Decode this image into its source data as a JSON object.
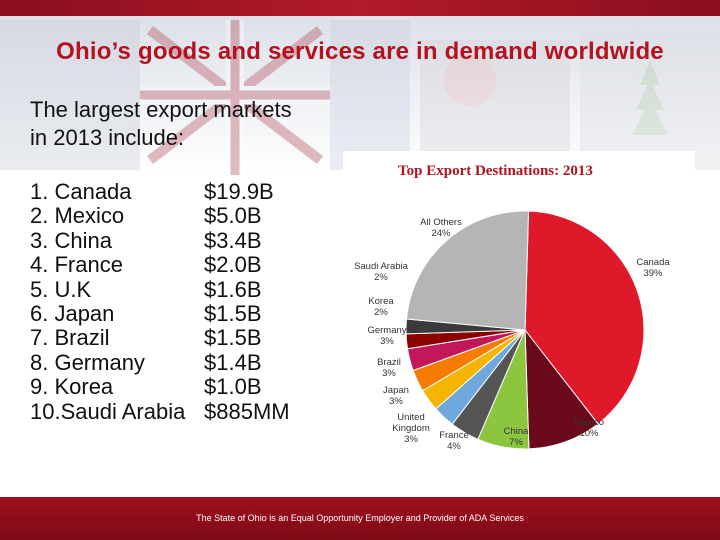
{
  "slide": {
    "title": "Ohio’s goods and services are in demand worldwide",
    "intro_line1": "The largest export markets",
    "intro_line2": "in 2013 include:",
    "items": [
      {
        "label": "1.  Canada",
        "value": "$19.9B"
      },
      {
        "label": "2.  Mexico",
        "value": "$5.0B"
      },
      {
        "label": "3.  China",
        "value": "$3.4B"
      },
      {
        "label": "4.  France",
        "value": "$2.0B"
      },
      {
        "label": "5.  U.K",
        "value": "$1.6B"
      },
      {
        "label": "6.  Japan",
        "value": "$1.5B"
      },
      {
        "label": "7.  Brazil",
        "value": "$1.5B"
      },
      {
        "label": "8.  Germany",
        "value": "$1.4B"
      },
      {
        "label": "9. Korea",
        "value": "$1.0B"
      },
      {
        "label": "10.Saudi Arabia",
        "value": "$885MM"
      }
    ],
    "footer": "The State of Ohio is an Equal Opportunity Employer and Provider of ADA Services"
  },
  "chart_data": {
    "type": "pie",
    "title": "Top Export Destinations: 2013",
    "slices": [
      {
        "name": "Canada",
        "percent": 39,
        "label": "39%",
        "color": "#e0192a"
      },
      {
        "name": "Mexico",
        "percent": 10,
        "label": "10%",
        "color": "#6b0a1a"
      },
      {
        "name": "China",
        "percent": 7,
        "label": "7%",
        "color": "#8cc63f"
      },
      {
        "name": "France",
        "percent": 4,
        "label": "4%",
        "color": "#555555"
      },
      {
        "name": "United Kingdom",
        "name_line1": "United",
        "name_line2": "Kingdom",
        "percent": 3,
        "label": "3%",
        "color": "#6fa8dc"
      },
      {
        "name": "Japan",
        "percent": 3,
        "label": "3%",
        "color": "#f4b400"
      },
      {
        "name": "Brazil",
        "percent": 3,
        "label": "3%",
        "color": "#f57c00"
      },
      {
        "name": "Germany",
        "percent": 3,
        "label": "3%",
        "color": "#c2185b"
      },
      {
        "name": "Korea",
        "percent": 2,
        "label": "2%",
        "color": "#8b0000"
      },
      {
        "name": "Saudi Arabia",
        "percent": 2,
        "label": "2%",
        "color": "#3a3a3a"
      },
      {
        "name": "All Others",
        "percent": 24,
        "label": "24%",
        "color": "#b5b5b5"
      }
    ]
  }
}
